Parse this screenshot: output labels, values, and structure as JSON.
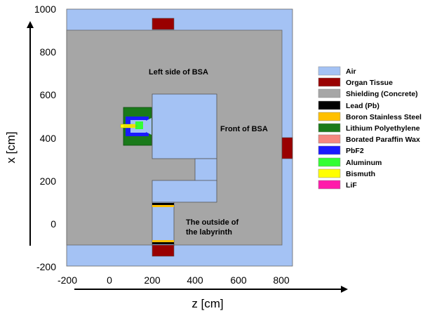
{
  "axes": {
    "x_label": "z [cm]",
    "y_label": "x [cm]",
    "z_range": [
      -200,
      900
    ],
    "x_range": [
      -200,
      1000
    ],
    "z_ticks": [
      "-200",
      "0",
      "200",
      "400",
      "600",
      "800"
    ],
    "x_ticks": [
      "-200",
      "0",
      "200",
      "400",
      "600",
      "800",
      "1000"
    ]
  },
  "region_labels": {
    "left_side": "Left side of BSA",
    "front": "Front of BSA",
    "outside_line1": "The outside of",
    "outside_line2": "the labyrinth"
  },
  "legend": [
    {
      "label": "Air",
      "color": "#a4c2f4"
    },
    {
      "label": "Organ Tissue",
      "color": "#990000"
    },
    {
      "label": "Shielding (Concrete)",
      "color": "#a6a6a6"
    },
    {
      "label": "Lead (Pb)",
      "color": "#000000"
    },
    {
      "label": "Boron Stainless Steel",
      "color": "#ffc000"
    },
    {
      "label": "Lithium Polyethylene",
      "color": "#1a7a1a"
    },
    {
      "label": "Borated Paraffin Wax",
      "color": "#f4877f"
    },
    {
      "label": "PbF2",
      "color": "#1a1aff"
    },
    {
      "label": "Aluminum",
      "color": "#33ff33"
    },
    {
      "label": "Bismuth",
      "color": "#ffff00"
    },
    {
      "label": "LiF",
      "color": "#ff1aaa"
    }
  ],
  "colors": {
    "air": "#a4c2f4",
    "concrete": "#a6a6a6",
    "organ": "#990000",
    "lead": "#000000",
    "boron_steel": "#ffc000",
    "li_poly": "#1a7a1a",
    "pbf2": "#1a1aff",
    "aluminum": "#33ff33",
    "bismuth": "#ffff00"
  }
}
